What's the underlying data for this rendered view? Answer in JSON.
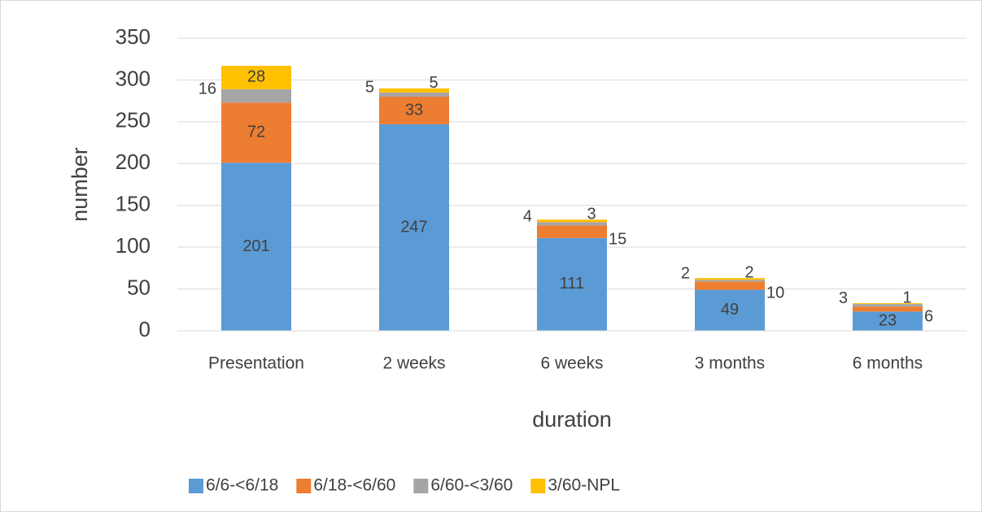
{
  "chart_data": {
    "type": "stacked_bar",
    "x_label": "duration",
    "y_label": "number",
    "categories": [
      "Presentation",
      "2 weeks",
      "6 weeks",
      "3 months",
      "6  months"
    ],
    "series": [
      {
        "name": "6/6-<6/18",
        "color": "#5b9bd5",
        "values": [
          201,
          247,
          111,
          49,
          23
        ]
      },
      {
        "name": "6/18-<6/60",
        "color": "#ed7d31",
        "values": [
          72,
          33,
          15,
          10,
          6
        ]
      },
      {
        "name": "6/60-<3/60",
        "color": "#a5a5a5",
        "values": [
          16,
          5,
          4,
          2,
          3
        ]
      },
      {
        "name": "3/60-NPL",
        "color": "#ffc000",
        "values": [
          28,
          5,
          3,
          2,
          1
        ]
      }
    ],
    "ylim": [
      0,
      350
    ],
    "yticks": [
      0,
      50,
      100,
      150,
      200,
      250,
      300,
      350
    ],
    "grid": true,
    "legend": "bottom"
  }
}
